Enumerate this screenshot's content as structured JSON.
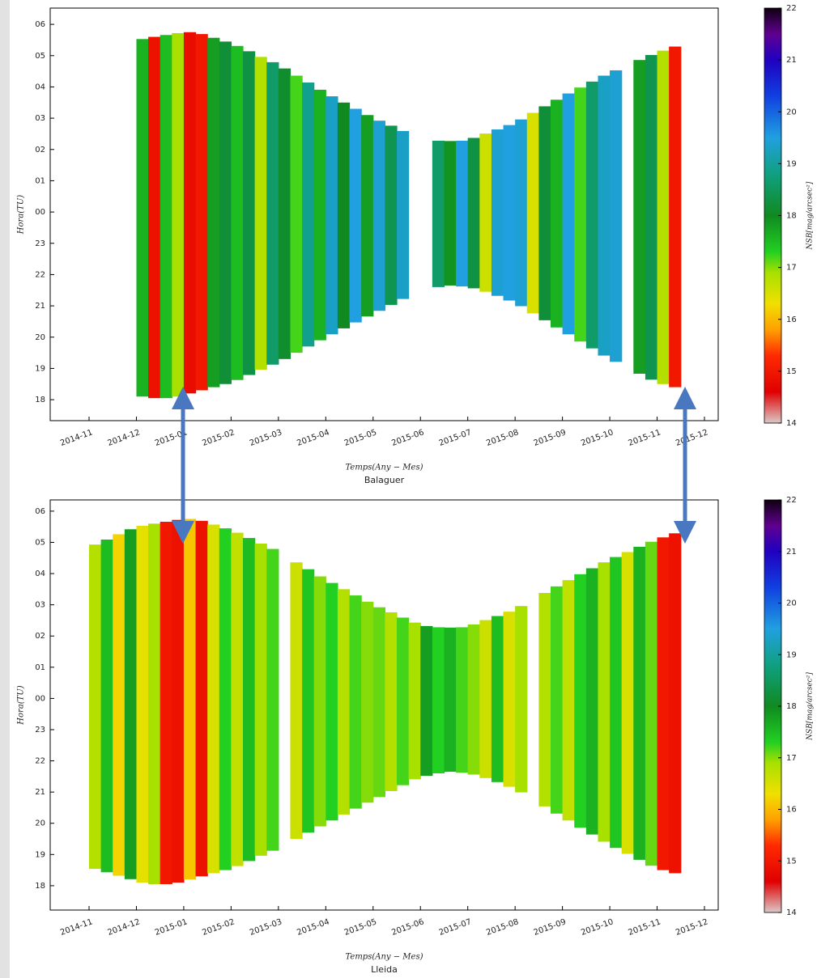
{
  "chart_data": [
    {
      "type": "heatmap",
      "xlabel": "Temps(Any − Mes)",
      "caption": "Balaguer",
      "ylabel": "Hora(TU)",
      "clabel": "NSB[mag/arcsec²]",
      "xticks": [
        "2014-11",
        "2014-12",
        "2015-01",
        "2015-02",
        "2015-03",
        "2015-04",
        "2015-05",
        "2015-06",
        "2015-07",
        "2015-08",
        "2015-09",
        "2015-10",
        "2015-11",
        "2015-12"
      ],
      "ylim": [
        17.33,
        30.52
      ],
      "yticks": [
        18,
        19,
        20,
        21,
        22,
        23,
        {
          "value": 24,
          "label": "00"
        },
        {
          "value": 25,
          "label": "01"
        },
        {
          "value": 26,
          "label": "02"
        },
        {
          "value": 27,
          "label": "03"
        },
        {
          "value": 28,
          "label": "04"
        },
        {
          "value": 29,
          "label": "05"
        },
        {
          "value": 30,
          "label": "06"
        }
      ],
      "values": [
        [
          null,
          null,
          null,
          null
        ],
        [
          17.6,
          14.9,
          17.5,
          16.9
        ],
        [
          14.8,
          15.0,
          17.8,
          18.2
        ],
        [
          17.5,
          18.3,
          16.8,
          18.6
        ],
        [
          18.1,
          17.2,
          18.9,
          17.6
        ],
        [
          19.3,
          18.0,
          19.5,
          17.8
        ],
        [
          19.4,
          18.4,
          19.3,
          null
        ],
        [
          null,
          18.6,
          17.9,
          19.5
        ],
        [
          18.3,
          16.6,
          19.4,
          19.5
        ],
        [
          19.4,
          16.5,
          18.2,
          17.6
        ],
        [
          19.5,
          17.2,
          18.6,
          19.3
        ],
        [
          19.4,
          null,
          17.8,
          18.4
        ],
        [
          16.8,
          15.0,
          null,
          null
        ]
      ],
      "night_start": [
        [
          null,
          null,
          null,
          null
        ],
        [
          18.1,
          18.05,
          18.05,
          18.1
        ],
        [
          18.2,
          18.3,
          18.4,
          18.5
        ],
        [
          18.63,
          18.79,
          18.96,
          19.12
        ],
        [
          19.3,
          19.5,
          19.7,
          19.9
        ],
        [
          20.09,
          20.28,
          20.47,
          20.66
        ],
        [
          20.84,
          21.03,
          21.22,
          null
        ],
        [
          null,
          21.6,
          21.65,
          21.62
        ],
        [
          21.56,
          21.45,
          21.32,
          21.17
        ],
        [
          20.99,
          20.76,
          20.54,
          20.31
        ],
        [
          20.09,
          19.86,
          19.64,
          19.41
        ],
        [
          19.21,
          null,
          18.83,
          18.64
        ],
        [
          18.5,
          18.4,
          null,
          null
        ]
      ],
      "night_end": [
        [
          null,
          null,
          null,
          null
        ],
        [
          29.53,
          29.6,
          29.66,
          29.72
        ],
        [
          29.75,
          29.69,
          29.57,
          29.45
        ],
        [
          29.31,
          29.14,
          28.96,
          28.79
        ],
        [
          28.59,
          28.36,
          28.14,
          27.91
        ],
        [
          27.7,
          27.5,
          27.3,
          27.1
        ],
        [
          26.92,
          26.76,
          26.59,
          null
        ],
        [
          null,
          26.28,
          26.27,
          26.28
        ],
        [
          26.37,
          26.51,
          26.64,
          26.78
        ],
        [
          26.96,
          27.17,
          27.38,
          27.59
        ],
        [
          27.79,
          27.98,
          28.17,
          28.36
        ],
        [
          28.53,
          null,
          28.86,
          29.02
        ],
        [
          29.16,
          29.29,
          null,
          null
        ]
      ],
      "clim": [
        14,
        22
      ],
      "cticks": [
        14,
        15,
        16,
        17,
        18,
        19,
        20,
        21,
        22
      ],
      "colormap": [
        [
          14,
          "#dcc8c8"
        ],
        [
          14.6,
          "#e00000"
        ],
        [
          15.3,
          "#ff2a00"
        ],
        [
          15.8,
          "#ffa000"
        ],
        [
          16.3,
          "#f0e000"
        ],
        [
          16.9,
          "#a8e000"
        ],
        [
          17.3,
          "#22d022"
        ],
        [
          18,
          "#108a20"
        ],
        [
          18.8,
          "#10a080"
        ],
        [
          19.5,
          "#20a0e0"
        ],
        [
          20.3,
          "#1040e0"
        ],
        [
          21,
          "#2000c0"
        ],
        [
          21.5,
          "#600090"
        ],
        [
          22,
          "#100010"
        ]
      ]
    },
    {
      "type": "heatmap",
      "xlabel": "Temps(Any − Mes)",
      "caption": "Lleida",
      "ylabel": "Hora(TU)",
      "clabel": "NSB[mag/arcsec²]",
      "xticks": [
        "2014-11",
        "2014-12",
        "2015-01",
        "2015-02",
        "2015-03",
        "2015-04",
        "2015-05",
        "2015-06",
        "2015-07",
        "2015-08",
        "2015-09",
        "2015-10",
        "2015-11",
        "2015-12"
      ],
      "ylim": [
        17.22,
        30.36
      ],
      "yticks": [
        18,
        19,
        20,
        21,
        22,
        23,
        {
          "value": 24,
          "label": "00"
        },
        {
          "value": 25,
          "label": "01"
        },
        {
          "value": 26,
          "label": "02"
        },
        {
          "value": 27,
          "label": "03"
        },
        {
          "value": 28,
          "label": "04"
        },
        {
          "value": 29,
          "label": "05"
        },
        {
          "value": 30,
          "label": "06"
        }
      ],
      "values": [
        [
          16.8,
          17.5,
          16.2,
          17.8
        ],
        [
          16.4,
          16.9,
          15.0,
          14.9
        ],
        [
          16.1,
          14.9,
          16.5,
          17.3
        ],
        [
          16.7,
          17.5,
          16.9,
          17.2
        ],
        [
          null,
          16.6,
          17.4,
          17.0
        ],
        [
          17.3,
          16.8,
          17.2,
          17.0
        ],
        [
          17.1,
          16.8,
          17.2,
          16.9
        ],
        [
          17.8,
          17.3,
          17.6,
          17.2
        ],
        [
          17.0,
          16.6,
          17.5,
          16.5
        ],
        [
          16.9,
          null,
          16.8,
          17.2
        ],
        [
          16.7,
          17.3,
          17.6,
          16.9
        ],
        [
          17.4,
          16.5,
          17.6,
          17.1
        ],
        [
          15.0,
          14.9,
          null,
          null
        ]
      ],
      "night_start": [
        [
          18.54,
          18.43,
          18.32,
          18.21
        ],
        [
          18.1,
          18.05,
          18.05,
          18.1
        ],
        [
          18.2,
          18.3,
          18.4,
          18.5
        ],
        [
          18.63,
          18.79,
          18.96,
          19.12
        ],
        [
          null,
          19.5,
          19.7,
          19.9
        ],
        [
          20.09,
          20.28,
          20.47,
          20.66
        ],
        [
          20.84,
          21.03,
          21.22,
          21.41
        ],
        [
          21.52,
          21.6,
          21.65,
          21.62
        ],
        [
          21.56,
          21.45,
          21.32,
          21.17
        ],
        [
          20.99,
          null,
          20.54,
          20.31
        ],
        [
          20.09,
          19.86,
          19.64,
          19.41
        ],
        [
          19.21,
          19.02,
          18.83,
          18.64
        ],
        [
          18.5,
          18.4,
          null,
          null
        ]
      ],
      "night_end": [
        [
          28.93,
          29.09,
          29.26,
          29.42
        ],
        [
          29.53,
          29.6,
          29.66,
          29.72
        ],
        [
          29.75,
          29.69,
          29.57,
          29.45
        ],
        [
          29.31,
          29.14,
          28.96,
          28.79
        ],
        [
          null,
          28.36,
          28.14,
          27.91
        ],
        [
          27.7,
          27.5,
          27.3,
          27.1
        ],
        [
          26.92,
          26.76,
          26.59,
          26.43
        ],
        [
          26.32,
          26.28,
          26.27,
          26.28
        ],
        [
          26.37,
          26.51,
          26.64,
          26.78
        ],
        [
          26.96,
          null,
          27.38,
          27.59
        ],
        [
          27.79,
          27.98,
          28.17,
          28.36
        ],
        [
          28.53,
          28.69,
          28.86,
          29.02
        ],
        [
          29.16,
          29.29,
          null,
          null
        ]
      ],
      "clim": [
        14,
        22
      ],
      "cticks": [
        14,
        15,
        16,
        17,
        18,
        19,
        20,
        21,
        22
      ],
      "colormap": [
        [
          14,
          "#dcc8c8"
        ],
        [
          14.6,
          "#e00000"
        ],
        [
          15.3,
          "#ff2a00"
        ],
        [
          15.8,
          "#ffa000"
        ],
        [
          16.3,
          "#f0e000"
        ],
        [
          16.9,
          "#a8e000"
        ],
        [
          17.3,
          "#22d022"
        ],
        [
          18,
          "#108a20"
        ],
        [
          18.8,
          "#10a080"
        ],
        [
          19.5,
          "#20a0e0"
        ],
        [
          20.3,
          "#1040e0"
        ],
        [
          21,
          "#2000c0"
        ],
        [
          21.5,
          "#600090"
        ],
        [
          22,
          "#100010"
        ]
      ]
    }
  ]
}
